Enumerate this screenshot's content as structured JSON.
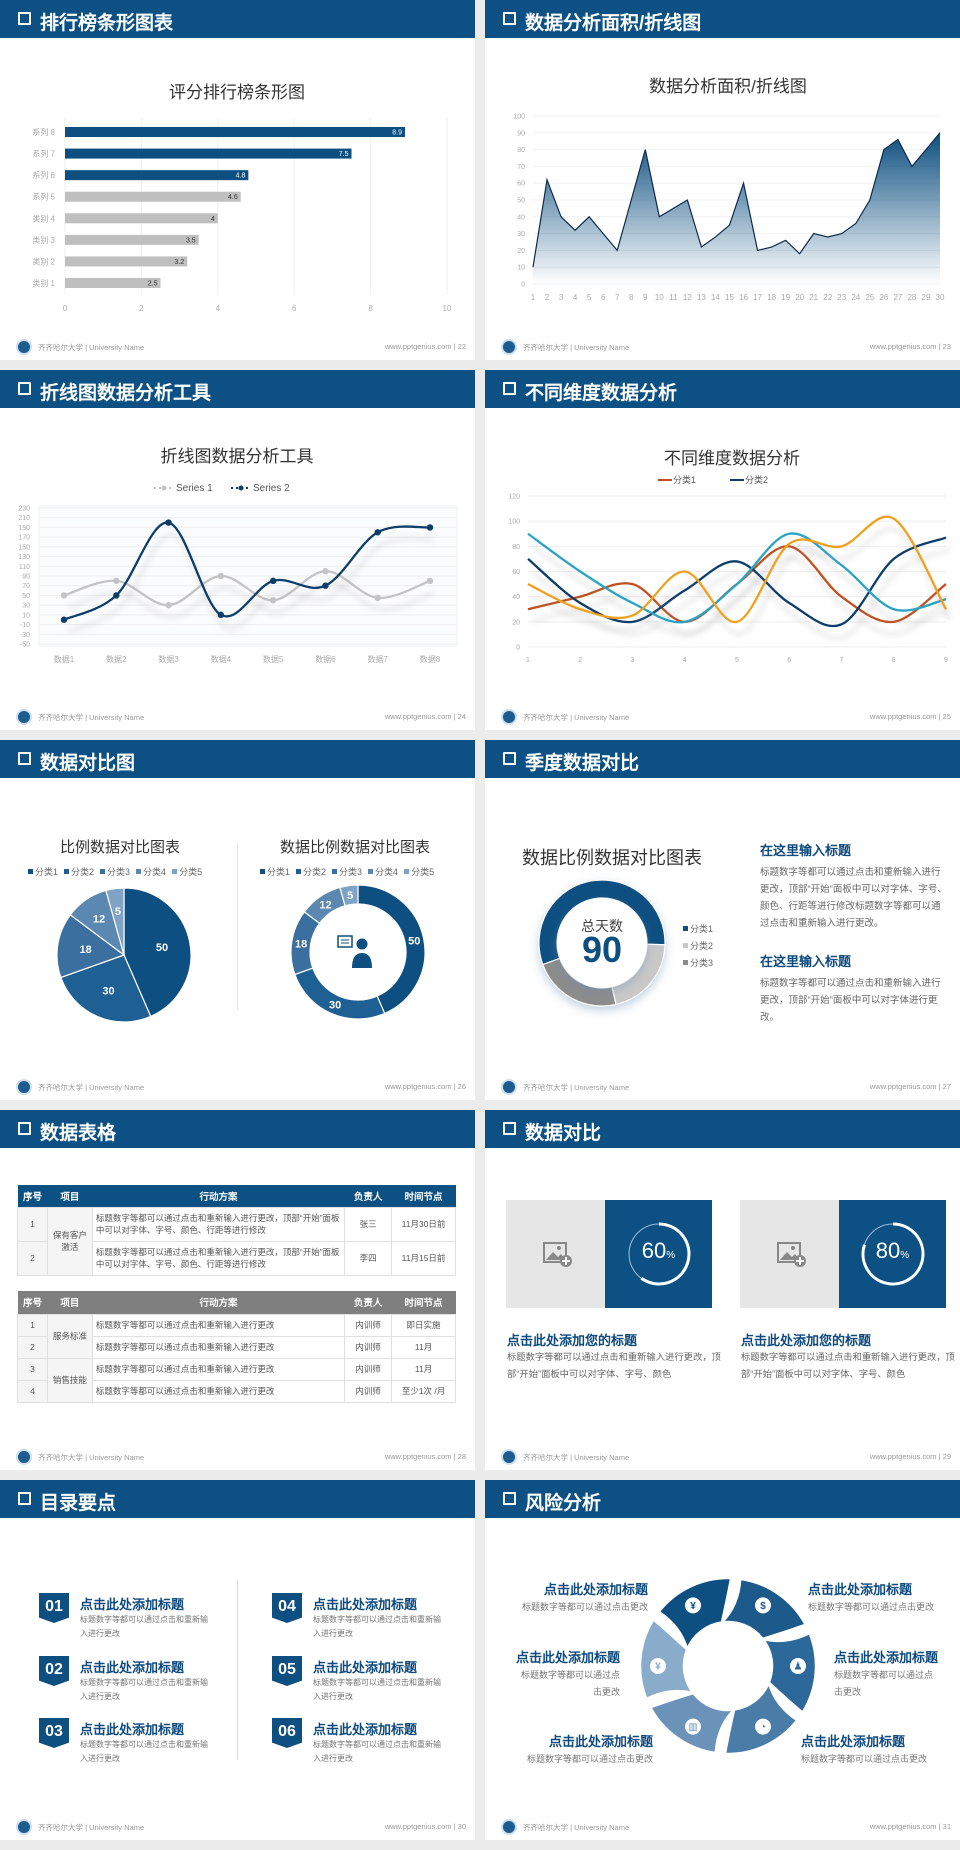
{
  "colors": {
    "header": "#0d5184",
    "accent": "#0d4f80",
    "gray": "#bfbfbf"
  },
  "footer": {
    "school": "齐齐哈尔大学 | University Name",
    "site": "www.pptgenius.com",
    "logo_icon": "university-seal-icon"
  },
  "slides": [
    {
      "title": "排行榜条形图表",
      "page": "22"
    },
    {
      "title": "数据分析面积/折线图",
      "page": "23"
    },
    {
      "title": "折线图数据分析工具",
      "page": "24"
    },
    {
      "title": "不同维度数据分析",
      "page": "25"
    },
    {
      "title": "数据对比图",
      "page": "26"
    },
    {
      "title": "季度数据对比",
      "page": "27",
      "blocks": [
        {
          "heading": "在这里输入标题",
          "text": "标题数字等都可以通过点击和重新输入进行更改，顶部“开始”面板中可以对字体、字号、颜色、行距等进行修改标题数字等都可以通过点击和重新输入进行更改。"
        },
        {
          "heading": "在这里输入标题",
          "text": "标题数字等都可以通过点击和重新输入进行更改，顶部“开始”面板中可以对字体进行更改。"
        }
      ]
    },
    {
      "title": "数据表格",
      "page": "28",
      "table1": {
        "headers": [
          "序号",
          "项目",
          "行动方案",
          "负责人",
          "时间节点"
        ],
        "group": "保有客户激活",
        "rows": [
          [
            "1",
            "标题数字等都可以通过点击和重新输入进行更改，顶部“开始”面板中可以对字体、字号、颜色、行距等进行修改",
            "张三",
            "11月30日前"
          ],
          [
            "2",
            "标题数字等都可以通过点击和重新输入进行更改，顶部“开始”面板中可以对字体、字号、颜色、行距等进行修改",
            "李四",
            "11月15日前"
          ]
        ]
      },
      "table2": {
        "headers": [
          "序号",
          "项目",
          "行动方案",
          "负责人",
          "时间节点"
        ],
        "groups": [
          "服务标准",
          "销售技能"
        ],
        "rows": [
          [
            "1",
            "标题数字等都可以通过点击和重新输入进行更改",
            "内训师",
            "即日实施"
          ],
          [
            "2",
            "标题数字等都可以通过点击和重新输入进行更改",
            "内训师",
            "11月"
          ],
          [
            "3",
            "标题数字等都可以通过点击和重新输入进行更改",
            "内训师",
            "11月"
          ],
          [
            "4",
            "标题数字等都可以通过点击和重新输入进行更改",
            "内训师",
            "至少1次 /月"
          ]
        ]
      }
    },
    {
      "title": "数据对比",
      "page": "29",
      "cards": [
        {
          "percent": 60,
          "value": "60",
          "unit": "%",
          "heading": "点击此处添加您的标题",
          "text": "标题数字等都可以通过点击和重新输入进行更改，顶部“开始”面板中可以对字体、字号、颜色",
          "image_icon": "add-image-icon"
        },
        {
          "percent": 80,
          "value": "80",
          "unit": "%",
          "heading": "点击此处添加您的标题",
          "text": "标题数字等都可以通过点击和重新输入进行更改，顶部“开始”面板中可以对字体、字号、颜色",
          "image_icon": "add-image-icon"
        }
      ]
    },
    {
      "title": "目录要点",
      "page": "30",
      "items": [
        {
          "num": "01",
          "title": "点击此处添加标题",
          "text": "标题数字等都可以通过点击和重新输入进行更改"
        },
        {
          "num": "02",
          "title": "点击此处添加标题",
          "text": "标题数字等都可以通过点击和重新输入进行更改"
        },
        {
          "num": "03",
          "title": "点击此处添加标题",
          "text": "标题数字等都可以通过点击和重新输入进行更改"
        },
        {
          "num": "04",
          "title": "点击此处添加标题",
          "text": "标题数字等都可以通过点击和重新输入进行更改"
        },
        {
          "num": "05",
          "title": "点击此处添加标题",
          "text": "标题数字等都可以通过点击和重新输入进行更改"
        },
        {
          "num": "06",
          "title": "点击此处添加标题",
          "text": "标题数字等都可以通过点击和重新输入进行更改"
        }
      ]
    },
    {
      "title": "风险分析",
      "page": "31",
      "items": [
        {
          "title": "点击此处添加标题",
          "text": "标题数字等都可以通过点击更改"
        },
        {
          "title": "点击此处添加标题",
          "text": "标题数字等都可以通过点击更改"
        },
        {
          "title": "点击此处添加标题",
          "text": "标题数字等都可以通过点击更改"
        },
        {
          "title": "点击此处添加标题",
          "text": "标题数字等都可以通过点击更改"
        },
        {
          "title": "点击此处添加标题",
          "text": "标题数字等都可以通过点击更改"
        },
        {
          "title": "点击此处添加标题",
          "text": "标题数字等都可以通过点击更改"
        }
      ],
      "segment_icons": [
        "money-bag-icon",
        "coins-icon",
        "users-icon",
        "pie-chart-icon",
        "building-icon",
        "yen-hand-icon"
      ],
      "segment_colors": [
        "#0d4f80",
        "#1c5a8c",
        "#2c6899",
        "#4a7ca8",
        "#6b93b9",
        "#8aaccb"
      ]
    }
  ],
  "chart_data": [
    {
      "type": "bar",
      "orientation": "horizontal",
      "title": "评分排行榜条形图",
      "categories": [
        "类别 1",
        "类别 2",
        "类别 3",
        "类别 4",
        "系列 5",
        "系列 6",
        "系列 7",
        "系列 8"
      ],
      "values": [
        2.5,
        3.2,
        3.5,
        4,
        4.6,
        4.8,
        7.5,
        8.9
      ],
      "bar_colors": [
        "#bfbfbf",
        "#bfbfbf",
        "#bfbfbf",
        "#bfbfbf",
        "#bfbfbf",
        "#0d4f80",
        "#0d4f80",
        "#0d4f80"
      ],
      "xlim": [
        0,
        10
      ],
      "xticks": [
        0,
        2,
        4,
        6,
        8,
        10
      ],
      "grid": true
    },
    {
      "type": "area",
      "title": "数据分析面积/折线图",
      "x": [
        1,
        2,
        3,
        4,
        5,
        6,
        7,
        8,
        9,
        10,
        11,
        12,
        13,
        14,
        15,
        16,
        17,
        18,
        19,
        20,
        21,
        22,
        23,
        24,
        25,
        26,
        27,
        28,
        29,
        30
      ],
      "values": [
        10,
        62,
        40,
        32,
        40,
        30,
        20,
        50,
        80,
        40,
        45,
        50,
        22,
        28,
        35,
        60,
        20,
        22,
        26,
        18,
        30,
        28,
        30,
        36,
        50,
        80,
        86,
        70,
        80,
        90
      ],
      "ylim": [
        0,
        100
      ],
      "yticks": [
        0,
        10,
        20,
        30,
        40,
        50,
        60,
        70,
        80,
        90,
        100
      ],
      "color": "#0d4f80",
      "grid": true
    },
    {
      "type": "line",
      "title": "折线图数据分析工具",
      "smooth": true,
      "categories": [
        "数据1",
        "数据2",
        "数据3",
        "数据4",
        "数据5",
        "数据6",
        "数据7",
        "数据8"
      ],
      "series": [
        {
          "name": "Series 1",
          "values": [
            50,
            80,
            30,
            90,
            40,
            100,
            45,
            80
          ],
          "color": "#c4c4c4"
        },
        {
          "name": "Series 2",
          "values": [
            0,
            50,
            200,
            10,
            80,
            70,
            180,
            190
          ],
          "color": "#0d3d6b"
        }
      ],
      "ylim": [
        -50,
        230
      ],
      "yticks": [
        -50,
        -30,
        -10,
        10,
        30,
        50,
        70,
        90,
        110,
        130,
        150,
        170,
        190,
        210,
        230
      ],
      "legend": "top",
      "grid": true
    },
    {
      "type": "line",
      "title": "不同维度数据分析",
      "smooth": true,
      "x": [
        1,
        2,
        3,
        4,
        5,
        6,
        7,
        8,
        9
      ],
      "series": [
        {
          "name": "分类1",
          "values": [
            30,
            40,
            50,
            20,
            50,
            80,
            40,
            20,
            50
          ],
          "color": "#c0501e"
        },
        {
          "name": "分类2",
          "values": [
            70,
            35,
            20,
            45,
            68,
            35,
            18,
            70,
            87
          ],
          "color": "#0d3d6b"
        },
        {
          "values": [
            90,
            60,
            35,
            20,
            50,
            90,
            65,
            30,
            38
          ],
          "color": "#2aa3c4"
        },
        {
          "values": [
            50,
            30,
            25,
            60,
            20,
            82,
            80,
            102,
            30
          ],
          "color": "#f0a020"
        }
      ],
      "ylim": [
        0,
        120
      ],
      "yticks": [
        0,
        20,
        40,
        60,
        80,
        100,
        120
      ],
      "legend": "top",
      "grid": true
    },
    {
      "type": "pie",
      "title": "比例数据对比图表",
      "categories": [
        "分类1",
        "分类2",
        "分类3",
        "分类4",
        "分类5"
      ],
      "values": [
        50,
        30,
        18,
        12,
        5
      ],
      "colors": [
        "#0d4f80",
        "#1e5f94",
        "#3a6f9f",
        "#5b88b0",
        "#7ea3c4"
      ],
      "legend": "top"
    },
    {
      "type": "donut",
      "title": "数据比例数据对比图表",
      "categories": [
        "分类1",
        "分类2",
        "分类3",
        "分类4",
        "分类5"
      ],
      "values": [
        50,
        30,
        18,
        12,
        5
      ],
      "colors": [
        "#0d4f80",
        "#1e5f94",
        "#3a6f9f",
        "#5b88b0",
        "#7ea3c4"
      ],
      "legend": "top",
      "center_icon": "presenter-icon"
    },
    {
      "type": "donut",
      "title": "数据比例数据对比图表",
      "center_label": "总天数",
      "center_value": "90",
      "categories": [
        "分类1",
        "分类2",
        "分类3"
      ],
      "values": [
        0.56,
        0.21,
        0.23
      ],
      "colors": [
        "#0d4f80",
        "#c8c8c8",
        "#8c8c8c"
      ],
      "legend": "right"
    }
  ]
}
